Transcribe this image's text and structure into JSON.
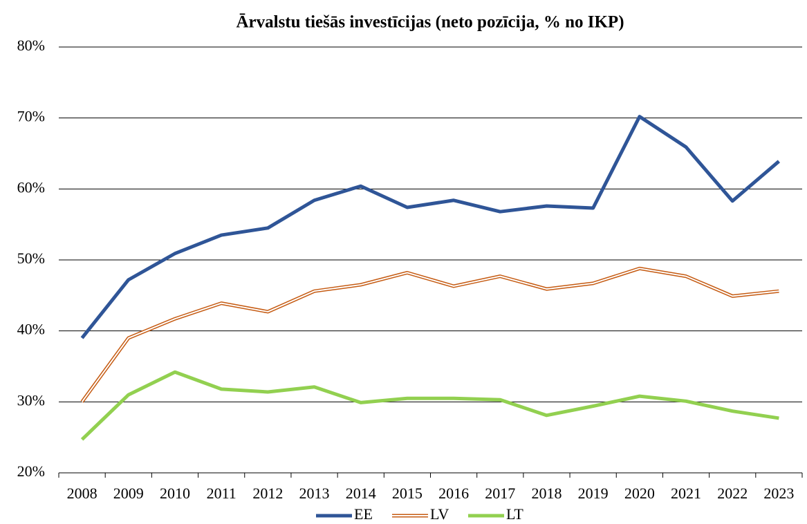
{
  "chart_data": {
    "type": "line",
    "title": "Ārvalstu tiešās investīcijas (neto pozīcija, % no IKP)",
    "categories": [
      "2008",
      "2009",
      "2010",
      "2011",
      "2012",
      "2013",
      "2014",
      "2015",
      "2016",
      "2017",
      "2018",
      "2019",
      "2020",
      "2021",
      "2022",
      "2023"
    ],
    "series": [
      {
        "name": "EE",
        "color": "#2f5597",
        "values": [
          39.0,
          47.2,
          50.9,
          53.5,
          54.5,
          58.4,
          60.4,
          57.4,
          58.4,
          56.8,
          57.6,
          57.3,
          70.2,
          65.9,
          58.3,
          63.9
        ]
      },
      {
        "name": "LV",
        "color": "#c55a11",
        "line_style": "double",
        "values": [
          30.0,
          39.0,
          41.7,
          43.9,
          42.7,
          45.6,
          46.5,
          48.2,
          46.3,
          47.7,
          45.9,
          46.7,
          48.8,
          47.7,
          44.9,
          45.6
        ]
      },
      {
        "name": "LT",
        "color": "#92d050",
        "values": [
          24.7,
          31.0,
          34.2,
          31.8,
          31.4,
          32.1,
          29.9,
          30.5,
          30.5,
          30.3,
          28.1,
          29.4,
          30.8,
          30.1,
          28.7,
          27.7
        ]
      }
    ],
    "ylim": [
      20,
      80
    ],
    "yticks": [
      {
        "value": 20,
        "label": "20%"
      },
      {
        "value": 30,
        "label": "30%"
      },
      {
        "value": 40,
        "label": "40%"
      },
      {
        "value": 50,
        "label": "50%"
      },
      {
        "value": 60,
        "label": "60%"
      },
      {
        "value": 70,
        "label": "70%"
      },
      {
        "value": 80,
        "label": "80%"
      }
    ],
    "grid": true,
    "legend": "bottom"
  }
}
